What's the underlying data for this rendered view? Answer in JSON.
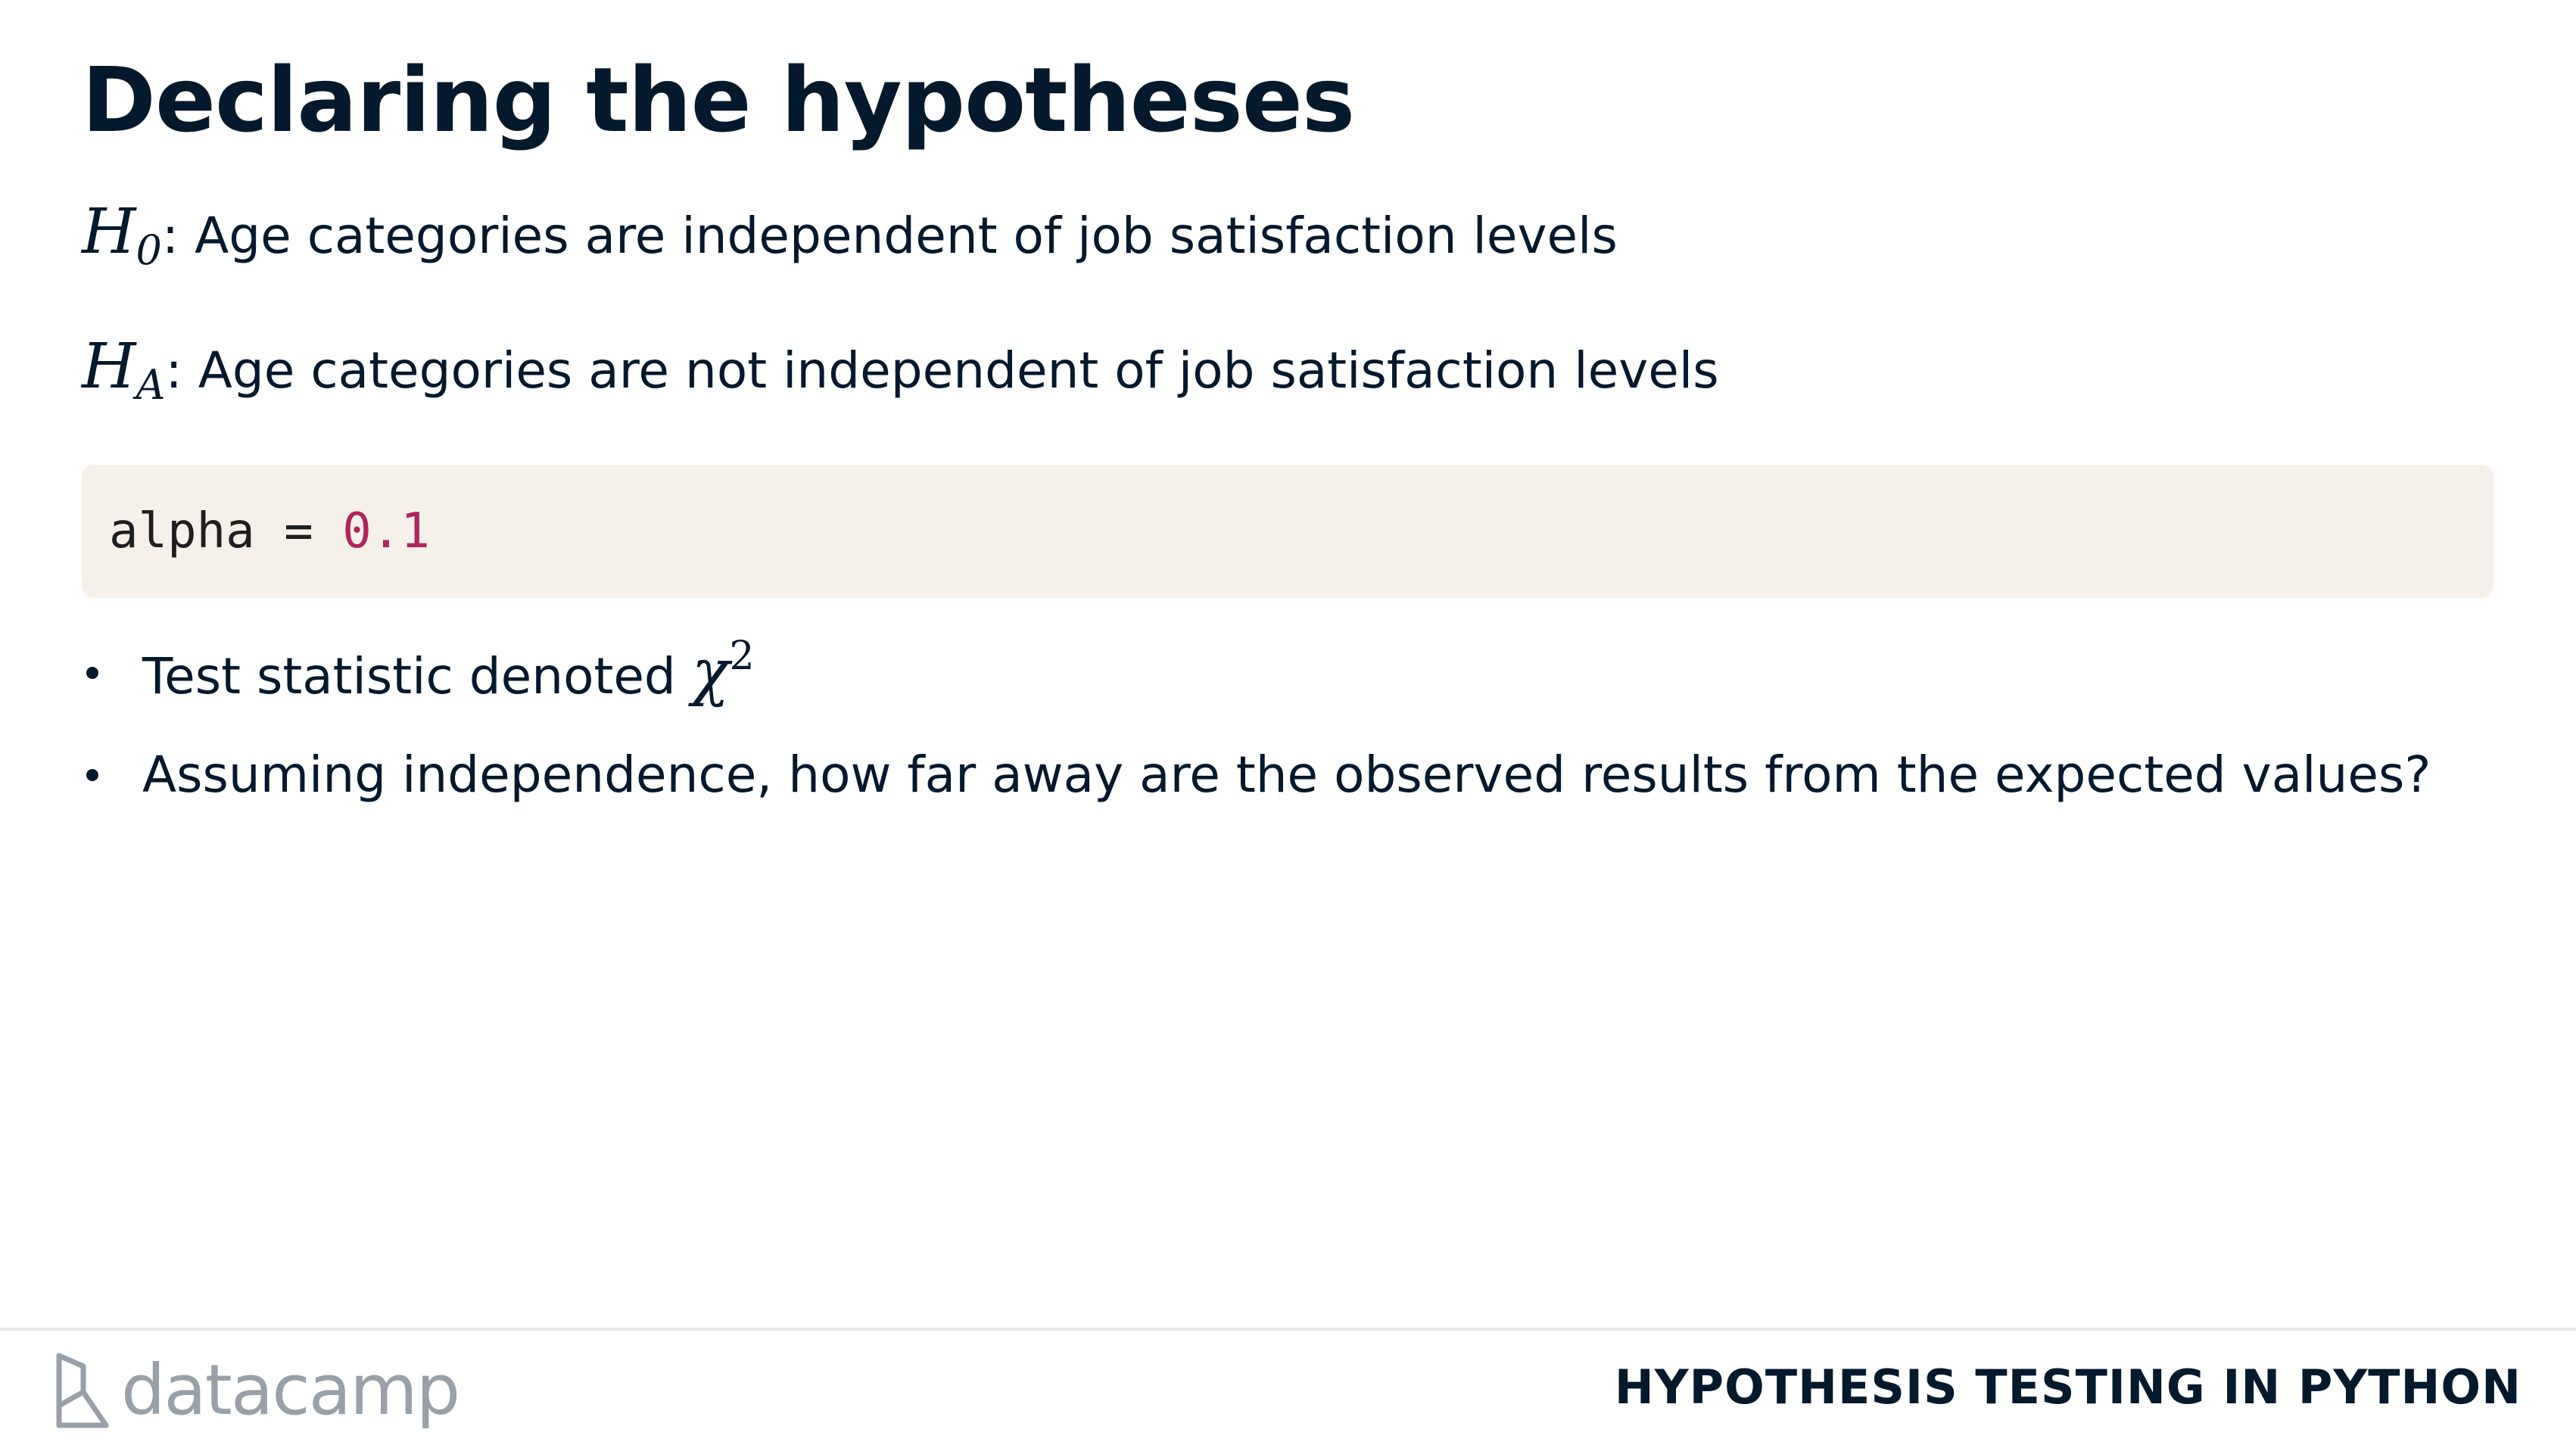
{
  "slide": {
    "title": "Declaring the hypotheses"
  },
  "hypotheses": {
    "null": {
      "symbol": "H",
      "subscript": "0",
      "text": ": Age categories are independent of job satisfaction levels"
    },
    "alternative": {
      "symbol": "H",
      "subscript": "A",
      "text": ": Age categories are not independent of job satisfaction levels"
    }
  },
  "code": {
    "variable": "alpha",
    "operator": " = ",
    "value": "0.1"
  },
  "bullets": [
    {
      "text": "Test statistic denoted ",
      "math_symbol": "χ",
      "math_superscript": "2"
    },
    {
      "text": "Assuming independence, how far away are the observed results from the expected values?"
    }
  ],
  "footer": {
    "logo_text": "datacamp",
    "course_title": "HYPOTHESIS TESTING IN PYTHON"
  },
  "colors": {
    "text": "#05192d",
    "code_background": "#f5f1ea",
    "code_number": "#b0245c",
    "logo_gray": "#9aa0a8"
  },
  "icons": {
    "logo_mark": "datacamp-logo-icon"
  }
}
